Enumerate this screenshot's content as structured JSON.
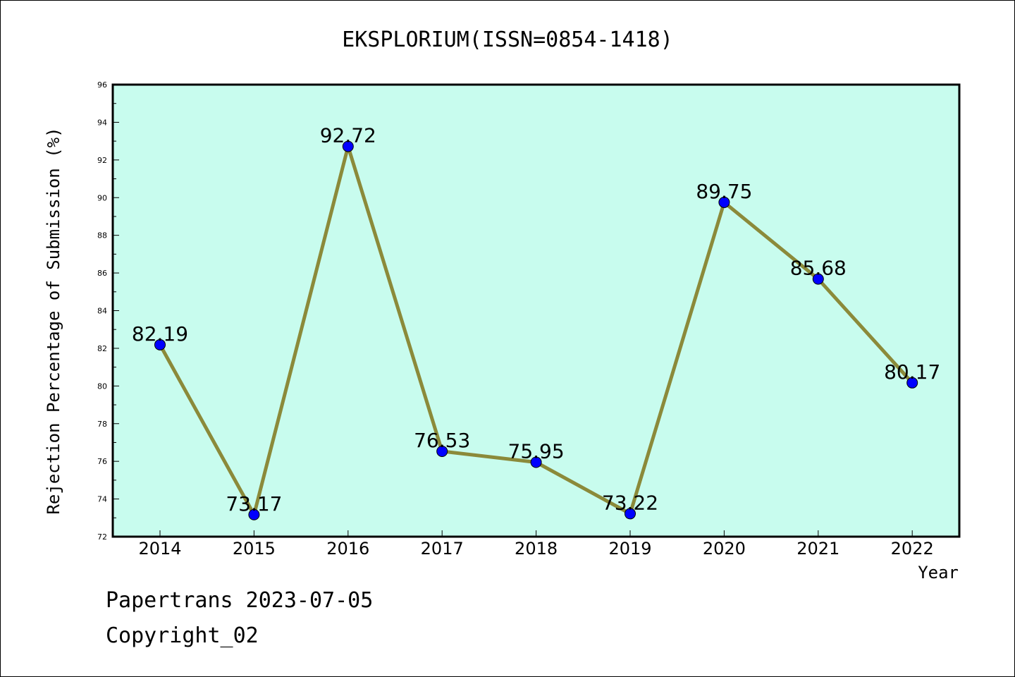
{
  "chart_data": {
    "type": "line",
    "title": "EKSPLORIUM(ISSN=0854-1418)",
    "xlabel": "Year",
    "ylabel": "Rejection Percentage of Submission (%)",
    "categories": [
      "2014",
      "2015",
      "2016",
      "2017",
      "2018",
      "2019",
      "2020",
      "2021",
      "2022"
    ],
    "values": [
      82.19,
      73.17,
      92.72,
      76.53,
      75.95,
      73.22,
      89.75,
      85.68,
      80.17
    ],
    "data_labels": [
      "82.19",
      "73.17",
      "92.72",
      "76.53",
      "75.95",
      "73.22",
      "89.75",
      "85.68",
      "80.17"
    ],
    "ylim": [
      72,
      96
    ],
    "yticks": [
      72,
      74,
      76,
      78,
      80,
      82,
      84,
      86,
      88,
      90,
      92,
      94,
      96
    ],
    "grid": false,
    "colors": {
      "plot_background": "#c8fcee",
      "line": "#8b8a3a",
      "marker": "#0000ff"
    }
  },
  "footer": {
    "line1": "Papertrans 2023-07-05",
    "line2": "Copyright_02"
  }
}
